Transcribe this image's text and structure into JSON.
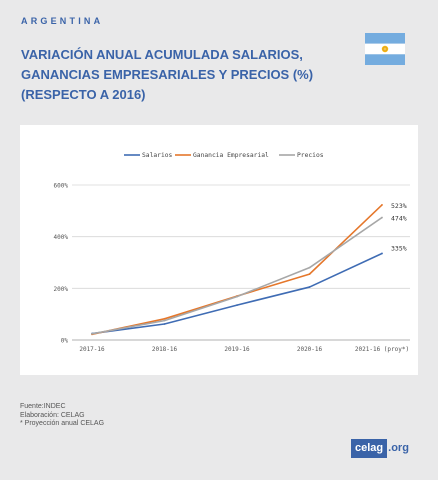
{
  "header": {
    "country": "ARGENTINA",
    "title_lines": [
      "VARIACIÓN ANUAL ACUMULADA SALARIOS,",
      "GANANCIAS EMPRESARIALES Y PRECIOS (%)",
      "(RESPECTO A 2016)"
    ]
  },
  "footer": {
    "source": "Fuente:INDEC",
    "elaboration": "Elaboración: CELAG",
    "note": "* Proyección anual CELAG"
  },
  "logo": {
    "text": "celag",
    "domain": ".org"
  },
  "colors": {
    "accent": "#3a63a8",
    "salarios": "#3f6cb4",
    "ganancia": "#e5772b",
    "precios": "#a7a7a7"
  },
  "chart_data": {
    "type": "line",
    "title": "",
    "xlabel": "",
    "ylabel": "",
    "categories": [
      "2017-16",
      "2018-16",
      "2019-16",
      "2020-16",
      "2021-16 (proy*)"
    ],
    "ylim": [
      0,
      600
    ],
    "yticks": [
      0,
      200,
      400,
      600
    ],
    "ytick_labels": [
      "0%",
      "200%",
      "400%",
      "600%"
    ],
    "grid": true,
    "legend_position": "top",
    "series": [
      {
        "name": "Salarios",
        "color": "#3f6cb4",
        "values": [
          25,
          62,
          135,
          205,
          335
        ],
        "end_label": "335%"
      },
      {
        "name": "Ganancia Empresarial",
        "color": "#e5772b",
        "values": [
          22,
          82,
          170,
          255,
          523
        ],
        "end_label": "523%"
      },
      {
        "name": "Precios",
        "color": "#a7a7a7",
        "values": [
          24,
          75,
          168,
          280,
          474
        ],
        "end_label": "474%"
      }
    ]
  }
}
